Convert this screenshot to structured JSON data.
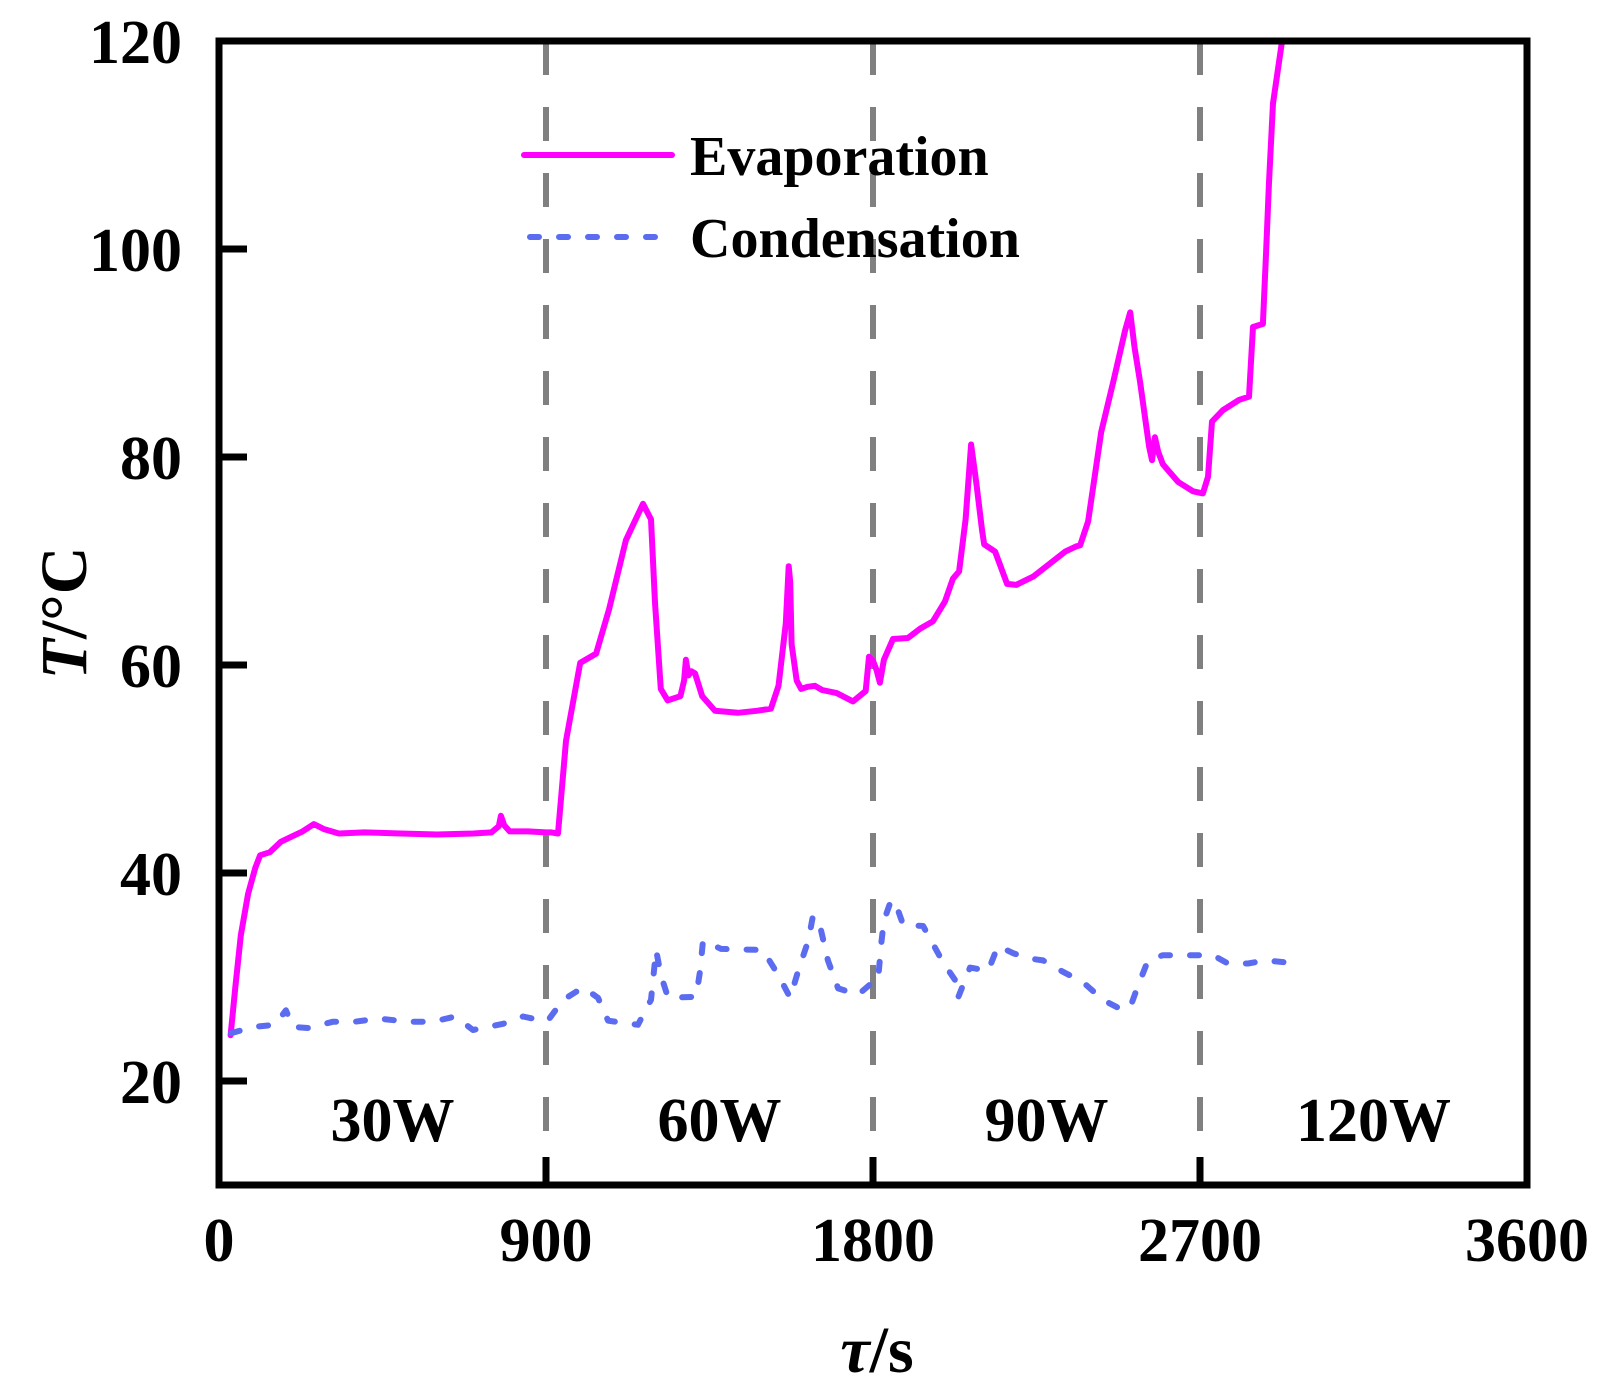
{
  "chart_data": {
    "type": "line",
    "title": "",
    "xlabel_symbol": "τ",
    "xlabel_unit": "/s",
    "ylabel_symbol": "T",
    "ylabel_unit": "/°C",
    "xlim": [
      0,
      3600
    ],
    "ylim": [
      10,
      120
    ],
    "xticks": [
      0,
      900,
      1800,
      2700,
      3600
    ],
    "xtick_labels": [
      "0",
      "900",
      "1800",
      "2700",
      "3600"
    ],
    "yticks": [
      20,
      40,
      60,
      80,
      100,
      120
    ],
    "ytick_labels": [
      "20",
      "40",
      "60",
      "80",
      "100",
      "120"
    ],
    "grid": false,
    "legend_position": "top-center",
    "vlines": [
      900,
      1800,
      2700
    ],
    "vline_color": "#808080",
    "regions": [
      {
        "label": "30W",
        "x": 450
      },
      {
        "label": "60W",
        "x": 1350
      },
      {
        "label": "90W",
        "x": 2250
      },
      {
        "label": "120W",
        "x": 3150
      }
    ],
    "region_label_y": 15,
    "series": [
      {
        "name": "Evaporation",
        "color": "#FF00FF",
        "style": "solid",
        "x": [
          32,
          45,
          60,
          80,
          100,
          113,
          140,
          170,
          200,
          230,
          261,
          290,
          330,
          400,
          500,
          600,
          700,
          750,
          770,
          776,
          785,
          800,
          850,
          900,
          915,
          933,
          955,
          994,
          1038,
          1073,
          1120,
          1167,
          1189,
          1200,
          1216,
          1235,
          1270,
          1280,
          1285,
          1292,
          1300,
          1310,
          1330,
          1365,
          1428,
          1480,
          1519,
          1540,
          1560,
          1568,
          1572,
          1576,
          1590,
          1602,
          1620,
          1640,
          1660,
          1700,
          1745,
          1780,
          1789,
          1800,
          1810,
          1819,
          1830,
          1855,
          1896,
          1930,
          1965,
          1998,
          2020,
          2037,
          2055,
          2070,
          2084,
          2100,
          2106,
          2136,
          2169,
          2194,
          2241,
          2296,
          2329,
          2359,
          2370,
          2392,
          2428,
          2461,
          2494,
          2508,
          2520,
          2535,
          2560,
          2568,
          2576,
          2585,
          2598,
          2640,
          2681,
          2708,
          2722,
          2733,
          2763,
          2808,
          2835,
          2840,
          2846,
          2873,
          2882,
          2890,
          2901,
          2923,
          2930
        ],
        "y": [
          24.4,
          29,
          34,
          38,
          40.5,
          41.7,
          42,
          43,
          43.5,
          44,
          44.7,
          44.2,
          43.8,
          43.9,
          43.8,
          43.7,
          43.8,
          43.9,
          44.5,
          45.5,
          44.6,
          44,
          44,
          43.9,
          43.9,
          43.8,
          52.7,
          60.2,
          61.1,
          65.3,
          72,
          75.5,
          74,
          66,
          57.7,
          56.6,
          57,
          58.5,
          60.5,
          59,
          59.4,
          59.2,
          57,
          55.6,
          55.4,
          55.6,
          55.8,
          58,
          64,
          69.5,
          68,
          62,
          58.5,
          57.7,
          57.9,
          58,
          57.6,
          57.3,
          56.5,
          57.5,
          60.8,
          60.4,
          59.5,
          58.3,
          60.5,
          62.5,
          62.6,
          63.5,
          64.2,
          66.1,
          68.3,
          69,
          74,
          81.2,
          77.6,
          73,
          71.6,
          70.9,
          67.8,
          67.7,
          68.5,
          70,
          70.9,
          71.4,
          71.5,
          73.8,
          82.4,
          87.2,
          92.2,
          93.9,
          90.5,
          87.2,
          81,
          79.7,
          81.9,
          80.5,
          79.3,
          77.6,
          76.7,
          76.5,
          78.1,
          83.4,
          84.5,
          85.5,
          85.8,
          89,
          92.5,
          92.8,
          99.7,
          106.4,
          114,
          119.3,
          121
        ]
      },
      {
        "name": "Condensation",
        "color": "#5B6CF0",
        "style": "dashed",
        "x": [
          33,
          94,
          154,
          184,
          204,
          245,
          314,
          374,
          440,
          520,
          589,
          650,
          699,
          782,
          837,
          892,
          905,
          947,
          1002,
          1043,
          1071,
          1153,
          1189,
          1203,
          1216,
          1236,
          1313,
          1324,
          1332,
          1382,
          1497,
          1539,
          1572,
          1594,
          1622,
          1635,
          1657,
          1676,
          1704,
          1759,
          1806,
          1814,
          1822,
          1830,
          1850,
          1863,
          1883,
          1938,
          1993,
          2026,
          2034,
          2067,
          2117,
          2144,
          2185,
          2227,
          2268,
          2323,
          2378,
          2433,
          2488,
          2510,
          2530,
          2557,
          2598,
          2640,
          2695,
          2736,
          2777,
          2832,
          2880,
          2937
        ],
        "y": [
          24.6,
          25.2,
          25.4,
          26.8,
          25.2,
          25.1,
          25.7,
          25.7,
          26.0,
          25.7,
          25.7,
          26.2,
          24.9,
          25.5,
          26.2,
          25.8,
          25.8,
          27.8,
          29.0,
          28.0,
          25.8,
          25.4,
          27.8,
          32.6,
          30.2,
          28.0,
          28.1,
          30.6,
          33.5,
          32.7,
          32.6,
          30.2,
          28.0,
          30.6,
          33.5,
          35.9,
          34.5,
          31.6,
          28.9,
          28.3,
          29.7,
          29.7,
          33.0,
          35.4,
          37.4,
          37.0,
          35.0,
          34.9,
          31.4,
          29.7,
          28.0,
          30.9,
          30.6,
          33.0,
          32.3,
          31.8,
          31.6,
          30.5,
          29.5,
          27.8,
          26.8,
          27.3,
          29.2,
          31.6,
          32.1,
          32.1,
          32.1,
          32.1,
          31.3,
          31.3,
          31.6,
          31.4
        ]
      }
    ]
  }
}
